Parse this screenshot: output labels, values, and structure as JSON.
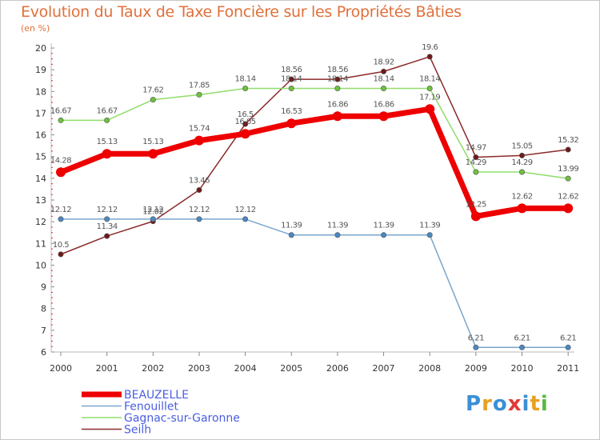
{
  "title": "Evolution du Taux de Taxe Foncière sur les Propriétés Bâties",
  "unit_label": "(en %)",
  "logo": {
    "text": "Proxiti",
    "colors": [
      "#3b8fd6",
      "#e8a020",
      "#3b8fd6",
      "#e03a3a",
      "#3b8fd6",
      "#e8a020",
      "#5ab840"
    ]
  },
  "chart_data": {
    "type": "line",
    "title": "Evolution du Taux de Taxe Foncière sur les Propriétés Bâties",
    "ylabel": "(en %)",
    "xlabel": "",
    "ylim": [
      6,
      20
    ],
    "yticks": [
      6,
      7,
      8,
      9,
      10,
      11,
      12,
      13,
      14,
      15,
      16,
      17,
      18,
      19,
      20
    ],
    "x": [
      "2000",
      "2001",
      "2002",
      "2003",
      "2004",
      "2005",
      "2006",
      "2007",
      "2008",
      "2009",
      "2010",
      "2011"
    ],
    "series": [
      {
        "name": "Seilh",
        "color": "#8b2a2a",
        "marker": "#6e1a1a",
        "values": [
          10.5,
          11.34,
          12.02,
          13.46,
          16.5,
          18.56,
          18.56,
          18.92,
          19.6,
          14.97,
          15.05,
          15.32
        ],
        "labels": [
          "10.5",
          "11.34",
          "12.02",
          "13.46",
          "16.5",
          "18.56",
          "18.56",
          "18.92",
          "19.6",
          "14.97",
          "15.05",
          "15.32"
        ]
      },
      {
        "name": "Gagnac-sur-Garonne",
        "color": "#90dd6a",
        "marker": "#70c040",
        "values": [
          16.67,
          16.67,
          17.62,
          17.85,
          18.14,
          18.14,
          18.14,
          18.14,
          18.14,
          14.29,
          14.29,
          13.99
        ],
        "labels": [
          "16.67",
          "16.67",
          "17.62",
          "17.85",
          "18.14",
          "18.14",
          "18.14",
          "18.14",
          "18.14",
          "14.29",
          "14.29",
          "13.99"
        ]
      },
      {
        "name": "Fenouillet",
        "color": "#7aa6cc",
        "marker": "#4a88c0",
        "values": [
          12.12,
          12.12,
          12.12,
          12.12,
          12.12,
          11.39,
          11.39,
          11.39,
          11.39,
          6.21,
          6.21,
          6.21
        ],
        "labels": [
          "12.12",
          "12.12",
          "12.12",
          "12.12",
          "12.12",
          "11.39",
          "11.39",
          "11.39",
          "11.39",
          "6.21",
          "6.21",
          "6.21"
        ]
      },
      {
        "name": "BEAUZELLE",
        "color": "#ee0000",
        "marker": "#ee0000",
        "values": [
          14.28,
          15.13,
          15.13,
          15.74,
          16.05,
          16.53,
          16.86,
          16.86,
          17.19,
          12.25,
          12.62,
          12.62
        ],
        "labels": [
          "14.28",
          "15.13",
          "15.13",
          "15.74",
          "16.05",
          "16.53",
          "16.86",
          "16.86",
          "17.19",
          "12.25",
          "12.62",
          "12.62"
        ]
      }
    ],
    "legend": [
      {
        "name": "BEAUZELLE",
        "color": "#ee0000",
        "bold": true
      },
      {
        "name": "Fenouillet",
        "color": "#7aa6cc",
        "bold": false
      },
      {
        "name": "Gagnac-sur-Garonne",
        "color": "#90dd6a",
        "bold": false
      },
      {
        "name": "Seilh",
        "color": "#8b2a2a",
        "bold": false
      }
    ],
    "legend_position": "bottom-left",
    "grid": false
  }
}
